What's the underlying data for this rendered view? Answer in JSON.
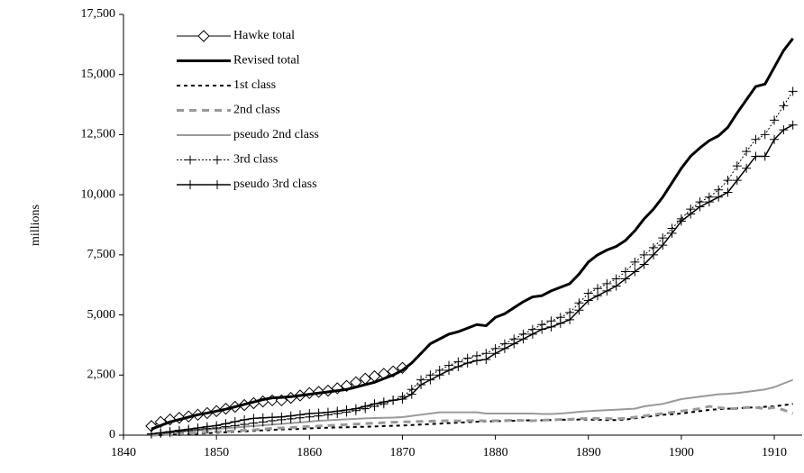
{
  "chart_data": {
    "type": "line",
    "y_label": "millions",
    "xlim": [
      1840,
      1913
    ],
    "xticks": [
      1840,
      1850,
      1860,
      1870,
      1880,
      1890,
      1900,
      1910
    ],
    "ylim": [
      0,
      17500
    ],
    "yticks": [
      0,
      {
        "value": 2500,
        "label": "2,500"
      },
      {
        "value": 5000,
        "label": "5,000"
      },
      {
        "value": 7500,
        "label": "7,500"
      },
      {
        "value": 10000,
        "label": "10,000"
      },
      {
        "value": 12500,
        "label": "12,500"
      },
      {
        "value": 15000,
        "label": "15,000"
      },
      {
        "value": 17500,
        "label": "17,500"
      }
    ],
    "legend": "upper left",
    "x": [
      1843,
      1844,
      1845,
      1846,
      1847,
      1848,
      1849,
      1850,
      1851,
      1852,
      1853,
      1854,
      1855,
      1856,
      1857,
      1858,
      1859,
      1860,
      1861,
      1862,
      1863,
      1864,
      1865,
      1866,
      1867,
      1868,
      1869,
      1870,
      1871,
      1872,
      1873,
      1874,
      1875,
      1876,
      1877,
      1878,
      1879,
      1880,
      1881,
      1882,
      1883,
      1884,
      1885,
      1886,
      1887,
      1888,
      1889,
      1890,
      1891,
      1892,
      1893,
      1894,
      1895,
      1896,
      1897,
      1898,
      1899,
      1900,
      1901,
      1902,
      1903,
      1904,
      1905,
      1906,
      1907,
      1908,
      1909,
      1910,
      1911,
      1912
    ],
    "series": [
      {
        "name": "Hawke total",
        "color": "#000000",
        "width": 1,
        "dash": "none",
        "marker": "diamond",
        "values": [
          380,
          550,
          650,
          720,
          780,
          850,
          920,
          1000,
          1100,
          1180,
          1250,
          1330,
          1400,
          1450,
          1450,
          1550,
          1650,
          1750,
          1800,
          1850,
          1950,
          2050,
          2200,
          2350,
          2450,
          2550,
          2650,
          2800,
          null,
          null,
          null,
          null,
          null,
          null,
          null,
          null,
          null,
          null,
          null,
          null,
          null,
          null,
          null,
          null,
          null,
          null,
          null,
          null,
          null,
          null,
          null,
          null,
          null,
          null,
          null,
          null,
          null,
          null,
          null,
          null,
          null,
          null,
          null,
          null,
          null,
          null,
          null,
          null,
          null,
          null
        ]
      },
      {
        "name": "Revised total",
        "color": "#000000",
        "width": 3,
        "dash": "none",
        "marker": "none",
        "values": [
          250,
          400,
          550,
          650,
          750,
          850,
          920,
          1000,
          1080,
          1180,
          1280,
          1380,
          1480,
          1550,
          1570,
          1600,
          1650,
          1700,
          1750,
          1800,
          1850,
          1900,
          2000,
          2100,
          2200,
          2350,
          2500,
          2700,
          3000,
          3400,
          3800,
          4000,
          4200,
          4300,
          4450,
          4600,
          4550,
          4900,
          5050,
          5300,
          5550,
          5750,
          5800,
          6000,
          6150,
          6300,
          6700,
          7200,
          7500,
          7700,
          7850,
          8100,
          8500,
          9000,
          9400,
          9900,
          10500,
          11100,
          11600,
          11950,
          12250,
          12450,
          12800,
          13400,
          13950,
          14500,
          14600,
          15300,
          16000,
          16500
        ]
      },
      {
        "name": "1st class",
        "color": "#000000",
        "width": 2,
        "dash": "4,4",
        "marker": "none",
        "values": [
          0,
          10,
          20,
          30,
          40,
          60,
          80,
          100,
          120,
          140,
          160,
          180,
          200,
          220,
          240,
          250,
          260,
          280,
          300,
          310,
          320,
          330,
          340,
          350,
          360,
          380,
          390,
          400,
          420,
          440,
          460,
          480,
          500,
          520,
          540,
          560,
          570,
          580,
          590,
          600,
          610,
          620,
          620,
          630,
          640,
          640,
          650,
          650,
          640,
          630,
          630,
          650,
          700,
          750,
          800,
          850,
          870,
          900,
          950,
          1000,
          1050,
          1080,
          1100,
          1120,
          1140,
          1160,
          1180,
          1200,
          1250,
          1300
        ]
      },
      {
        "name": "2nd class",
        "color": "#999999",
        "width": 3,
        "dash": "8,6",
        "marker": "none",
        "values": [
          0,
          20,
          40,
          60,
          80,
          100,
          120,
          140,
          160,
          180,
          200,
          220,
          250,
          280,
          300,
          320,
          340,
          360,
          380,
          400,
          420,
          440,
          460,
          480,
          500,
          520,
          540,
          550,
          560,
          570,
          580,
          590,
          600,
          590,
          600,
          610,
          590,
          600,
          610,
          620,
          610,
          600,
          620,
          640,
          650,
          660,
          680,
          700,
          700,
          690,
          680,
          700,
          750,
          800,
          850,
          900,
          950,
          1000,
          1050,
          1100,
          1200,
          1150,
          1100,
          1100,
          1150,
          1150,
          1100,
          1150,
          1050,
          900
        ]
      },
      {
        "name": "pseudo 2nd class",
        "color": "#999999",
        "width": 2,
        "dash": "none",
        "marker": "none",
        "values": [
          50,
          80,
          110,
          140,
          170,
          200,
          230,
          260,
          290,
          320,
          350,
          380,
          410,
          440,
          470,
          500,
          530,
          560,
          600,
          620,
          640,
          660,
          680,
          700,
          710,
          720,
          730,
          750,
          800,
          850,
          900,
          950,
          950,
          950,
          950,
          950,
          900,
          900,
          900,
          900,
          900,
          900,
          880,
          880,
          900,
          930,
          970,
          1000,
          1020,
          1040,
          1060,
          1080,
          1100,
          1200,
          1250,
          1300,
          1400,
          1500,
          1550,
          1600,
          1650,
          1700,
          1720,
          1750,
          1800,
          1850,
          1900,
          2000,
          2150,
          2300
        ]
      },
      {
        "name": "3rd class",
        "color": "#000000",
        "width": 1,
        "dash": "2,2",
        "marker": "plus",
        "values": [
          50,
          80,
          110,
          150,
          190,
          230,
          270,
          300,
          350,
          400,
          450,
          500,
          550,
          600,
          640,
          680,
          720,
          760,
          800,
          850,
          900,
          960,
          1020,
          1100,
          1200,
          1300,
          1450,
          1600,
          1900,
          2300,
          2500,
          2700,
          2900,
          3050,
          3200,
          3300,
          3400,
          3600,
          3800,
          4000,
          4200,
          4400,
          4600,
          4750,
          4900,
          5100,
          5500,
          5900,
          6100,
          6300,
          6500,
          6800,
          7200,
          7500,
          7800,
          8200,
          8600,
          9000,
          9400,
          9700,
          9900,
          10200,
          10600,
          11200,
          11800,
          12300,
          12500,
          13100,
          13700,
          14300
        ]
      },
      {
        "name": "pseudo 3rd class",
        "color": "#000000",
        "width": 1.5,
        "dash": "none",
        "marker": "plus",
        "values": [
          50,
          100,
          150,
          200,
          250,
          300,
          350,
          400,
          480,
          560,
          640,
          700,
          720,
          740,
          760,
          800,
          850,
          900,
          920,
          950,
          1000,
          1050,
          1100,
          1200,
          1300,
          1380,
          1450,
          1500,
          1700,
          2100,
          2300,
          2500,
          2700,
          2850,
          3000,
          3100,
          3150,
          3400,
          3600,
          3800,
          4000,
          4200,
          4400,
          4500,
          4650,
          4800,
          5200,
          5600,
          5800,
          6000,
          6200,
          6500,
          6800,
          7100,
          7500,
          7900,
          8400,
          8900,
          9200,
          9500,
          9700,
          9900,
          10100,
          10600,
          11100,
          11600,
          11600,
          12300,
          12700,
          12900
        ]
      }
    ]
  }
}
